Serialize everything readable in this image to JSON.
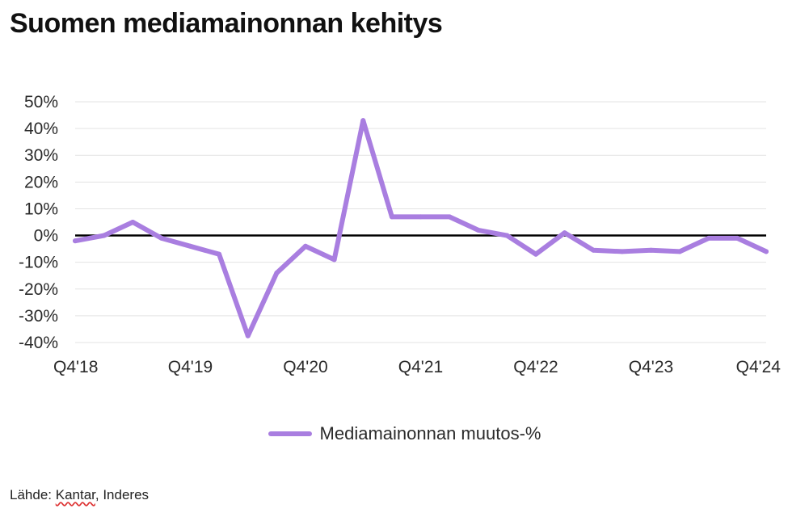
{
  "title": "Suomen mediamainonnan kehitys",
  "source_prefix": "Lähde: ",
  "source_flagged": "Kantar",
  "source_rest": ", Inderes",
  "colors": {
    "series": "#a97ee0",
    "zero_line": "#000000",
    "grid": "#e3e3e3"
  },
  "chart_data": {
    "type": "line",
    "x": [
      "Q4'18",
      "Q1'19",
      "Q2'19",
      "Q3'19",
      "Q4'19",
      "Q1'20",
      "Q2'20",
      "Q3'20",
      "Q4'20",
      "Q1'21",
      "Q2'21",
      "Q3'21",
      "Q4'21",
      "Q1'22",
      "Q2'22",
      "Q3'22",
      "Q4'22",
      "Q1'23",
      "Q2'23",
      "Q3'23",
      "Q4'23",
      "Q1'24",
      "Q2'24",
      "Q3'24",
      "Q4'24"
    ],
    "x_tick_labels": [
      "Q4'18",
      "Q4'19",
      "Q4'20",
      "Q4'21",
      "Q4'22",
      "Q4'23",
      "Q4'24"
    ],
    "series": [
      {
        "name": "Mediamainonnan muutos-%",
        "values": [
          -2,
          0,
          5,
          -1,
          -4,
          -7,
          -37.5,
          -14,
          -4,
          -9,
          43,
          7,
          7,
          7,
          2,
          0,
          -7,
          1,
          -5.5,
          -6,
          -5.5,
          -6,
          -1,
          -1,
          -6
        ]
      }
    ],
    "ylim": [
      -40,
      50
    ],
    "y_ticks": [
      -40,
      -30,
      -20,
      -10,
      0,
      10,
      20,
      30,
      40,
      50
    ],
    "y_tick_labels": [
      "-40%",
      "-30%",
      "-20%",
      "-10%",
      "0%",
      "10%",
      "20%",
      "30%",
      "40%",
      "50%"
    ],
    "grid": true,
    "legend_position": "bottom-center"
  }
}
